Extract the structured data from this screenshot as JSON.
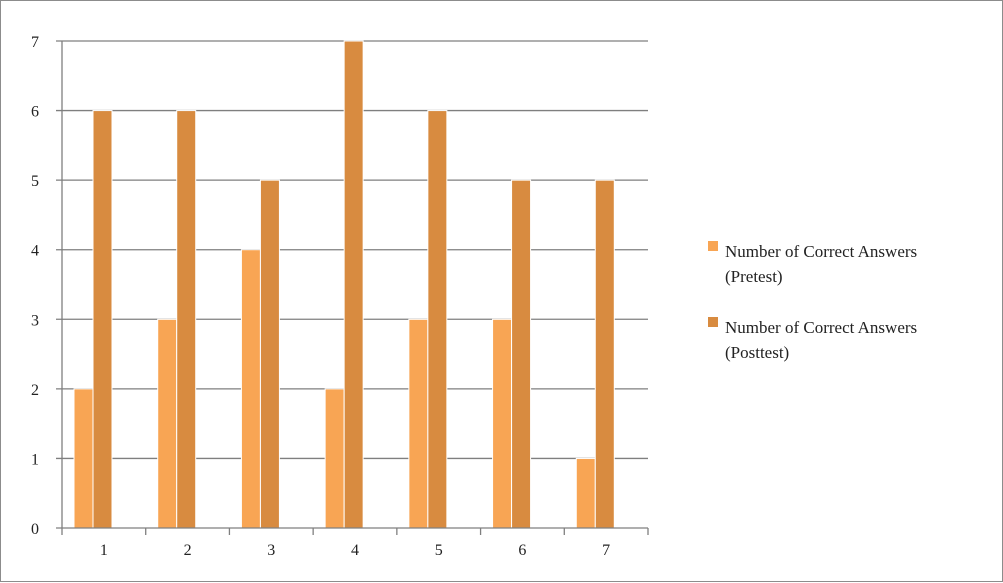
{
  "chart_data": {
    "type": "bar",
    "categories": [
      "1",
      "2",
      "3",
      "4",
      "5",
      "6",
      "7"
    ],
    "series": [
      {
        "name": "Number of Correct Answers (Pretest)",
        "values": [
          2,
          3,
          4,
          2,
          3,
          3,
          1
        ],
        "color": "#f8a554"
      },
      {
        "name": "Number of Correct Answers (Posttest)",
        "values": [
          6,
          6,
          5,
          7,
          6,
          5,
          5
        ],
        "color": "#d88b40"
      }
    ],
    "ylim": [
      0,
      7
    ],
    "yticks": [
      "0",
      "1",
      "2",
      "3",
      "4",
      "5",
      "6",
      "7"
    ],
    "grid": true,
    "legend_position": "right",
    "legend": [
      {
        "line1": "Number of Correct Answers",
        "line2": "(Pretest)",
        "color": "#f8a554"
      },
      {
        "line1": "Number of Correct Answers",
        "line2": "(Posttest)",
        "color": "#d88b40"
      }
    ],
    "title": "",
    "xlabel": "",
    "ylabel": ""
  }
}
